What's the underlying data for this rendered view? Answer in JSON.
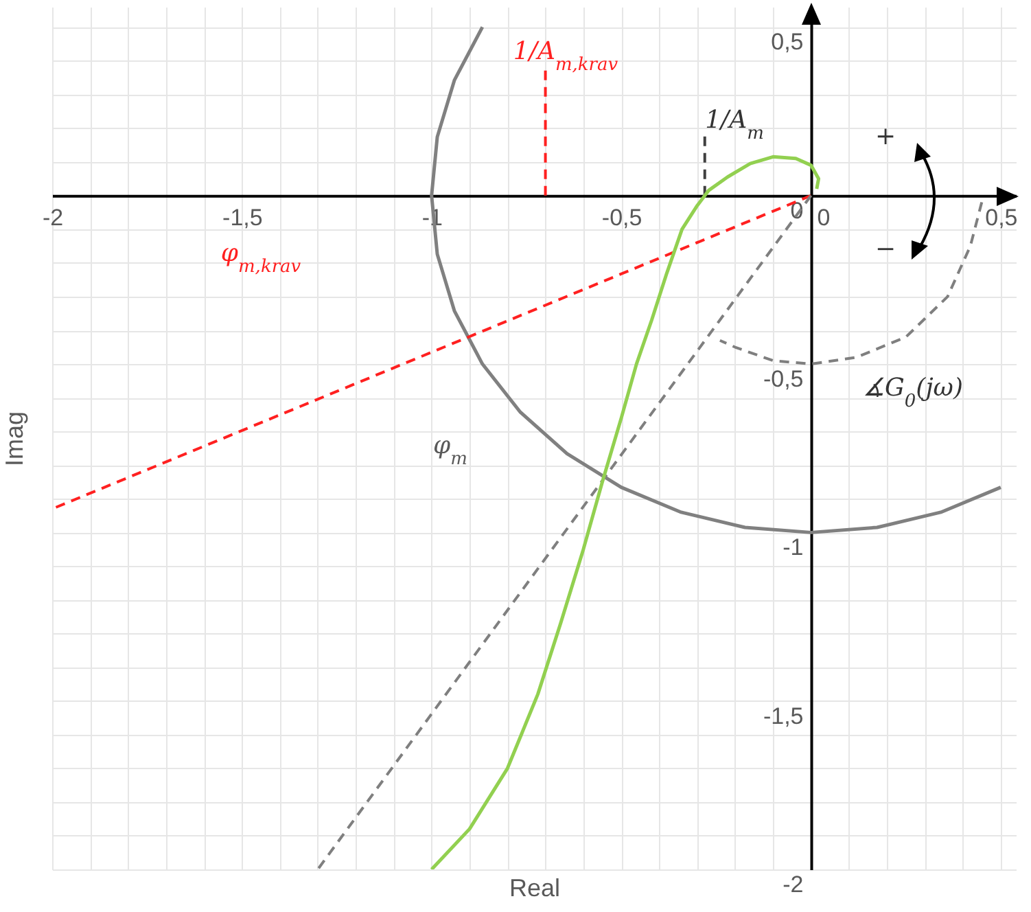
{
  "chart_data": {
    "type": "line",
    "xlabel": "Real",
    "ylabel": "Imag",
    "xlim": [
      -2,
      0.54
    ],
    "ylim": [
      -2,
      0.56
    ],
    "xticks": [
      -2,
      {
        "value": -1.9,
        "label": null
      },
      {
        "value": -1.8,
        "label": null
      },
      {
        "value": -1.7,
        "label": null
      },
      {
        "value": -1.6,
        "label": null
      },
      {
        "value": -1.5,
        "label": "-1,5"
      },
      {
        "value": -1.4,
        "label": null
      },
      {
        "value": -1.3,
        "label": null
      },
      {
        "value": -1.2,
        "label": null
      },
      {
        "value": -1.1,
        "label": null
      },
      -1,
      {
        "value": -0.9,
        "label": null
      },
      {
        "value": -0.8,
        "label": null
      },
      {
        "value": -0.7,
        "label": null
      },
      {
        "value": -0.6,
        "label": null
      },
      {
        "value": -0.5,
        "label": "-0,5"
      },
      {
        "value": -0.4,
        "label": null
      },
      {
        "value": -0.3,
        "label": null
      },
      {
        "value": -0.2,
        "label": null
      },
      {
        "value": -0.1,
        "label": null
      },
      0,
      {
        "value": 0.1,
        "label": null
      },
      {
        "value": 0.2,
        "label": null
      },
      {
        "value": 0.3,
        "label": null
      },
      {
        "value": 0.4,
        "label": null
      },
      {
        "value": 0.5,
        "label": "0,5"
      }
    ],
    "yticks": [
      -2,
      {
        "value": -1.9,
        "label": null
      },
      {
        "value": -1.8,
        "label": null
      },
      {
        "value": -1.7,
        "label": null
      },
      {
        "value": -1.6,
        "label": null
      },
      {
        "value": -1.5,
        "label": "-1,5"
      },
      {
        "value": -1.4,
        "label": null
      },
      {
        "value": -1.3,
        "label": null
      },
      {
        "value": -1.2,
        "label": null
      },
      {
        "value": -1.1,
        "label": null
      },
      -1,
      {
        "value": -0.9,
        "label": null
      },
      {
        "value": -0.8,
        "label": null
      },
      {
        "value": -0.7,
        "label": null
      },
      {
        "value": -0.6,
        "label": null
      },
      {
        "value": -0.5,
        "label": "-0,5"
      },
      {
        "value": -0.4,
        "label": null
      },
      {
        "value": -0.3,
        "label": null
      },
      {
        "value": -0.2,
        "label": null
      },
      {
        "value": -0.1,
        "label": null
      },
      0,
      {
        "value": 0.1,
        "label": null
      },
      {
        "value": 0.2,
        "label": null
      },
      {
        "value": 0.3,
        "label": null
      },
      {
        "value": 0.4,
        "label": null
      },
      {
        "value": 0.5,
        "label": "0,5"
      }
    ],
    "grid": true,
    "series": [
      {
        "color": "#808080",
        "line_style": "solid",
        "x": [
          -0.866,
          -0.94,
          -0.985,
          -1,
          -0.985,
          -0.94,
          -0.866,
          -0.766,
          -0.643,
          -0.5,
          -0.342,
          -0.174,
          0,
          0.174,
          0.342,
          0.5
        ],
        "values": [
          0.5,
          0.342,
          0.174,
          0,
          -0.174,
          -0.342,
          -0.5,
          -0.643,
          -0.766,
          -0.866,
          -0.94,
          -0.985,
          -1,
          -0.985,
          -0.94,
          -0.866
        ]
      },
      {
        "color": "#ff2020",
        "line_style": "dashed",
        "x": [
          0,
          -2
        ],
        "values": [
          0,
          -0.93
        ]
      },
      {
        "color": "#ff2020",
        "line_style": "dashed",
        "x": [
          -0.7,
          -0.7
        ],
        "values": [
          0,
          0.38
        ]
      },
      {
        "color": "#404040",
        "line_style": "dashed",
        "x": [
          -0.28,
          -0.28
        ],
        "values": [
          0,
          0.18
        ]
      },
      {
        "color": "#7f7f7f",
        "line_style": "dashed",
        "x": [
          0,
          -1.3
        ],
        "values": [
          0,
          -2
        ]
      },
      {
        "color": "#7f7f7f",
        "line_style": "dashed",
        "x": [
          0.45,
          0.42,
          0.36,
          0.25,
          0.12,
          0,
          -0.1,
          -0.2,
          -0.24
        ],
        "values": [
          -0.02,
          -0.15,
          -0.3,
          -0.42,
          -0.48,
          -0.5,
          -0.49,
          -0.45,
          -0.43
        ]
      },
      {
        "color": "#92d050",
        "line_style": "solid",
        "x": [
          0.015,
          0.02,
          0,
          -0.04,
          -0.1,
          -0.16,
          -0.22,
          -0.27,
          -0.3,
          -0.34,
          -0.38,
          -0.42,
          -0.46,
          -0.5,
          -0.55,
          -0.6,
          -0.66,
          -0.72,
          -0.8,
          -0.9,
          -1
        ],
        "values": [
          0.02,
          0.05,
          0.09,
          0.11,
          0.115,
          0.095,
          0.055,
          0.015,
          -0.03,
          -0.1,
          -0.23,
          -0.37,
          -0.5,
          -0.66,
          -0.85,
          -1.05,
          -1.27,
          -1.48,
          -1.7,
          -1.88,
          -2
        ]
      }
    ],
    "annotations": [
      "1/A$_{m,krav}$",
      "1/A$_{m}$",
      "φ$_{m,krav}$",
      "φ$_{m}$",
      "∡G$_{0}$(jω)",
      "+",
      "−"
    ]
  }
}
